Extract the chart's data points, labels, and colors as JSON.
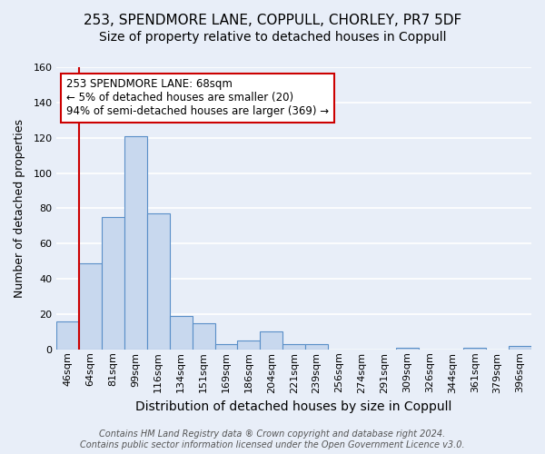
{
  "title_line1": "253, SPENDMORE LANE, COPPULL, CHORLEY, PR7 5DF",
  "title_line2": "Size of property relative to detached houses in Coppull",
  "xlabel": "Distribution of detached houses by size in Coppull",
  "ylabel": "Number of detached properties",
  "bar_labels": [
    "46sqm",
    "64sqm",
    "81sqm",
    "99sqm",
    "116sqm",
    "134sqm",
    "151sqm",
    "169sqm",
    "186sqm",
    "204sqm",
    "221sqm",
    "239sqm",
    "256sqm",
    "274sqm",
    "291sqm",
    "309sqm",
    "326sqm",
    "344sqm",
    "361sqm",
    "379sqm",
    "396sqm"
  ],
  "bar_values": [
    16,
    49,
    75,
    121,
    77,
    19,
    15,
    3,
    5,
    10,
    3,
    3,
    0,
    0,
    0,
    1,
    0,
    0,
    1,
    0,
    2
  ],
  "bar_color": "#c8d8ee",
  "bar_edge_color": "#5a8fc8",
  "background_color": "#e8eef8",
  "grid_color": "#ffffff",
  "annotation_line1": "253 SPENDMORE LANE: 68sqm",
  "annotation_line2": "← 5% of detached houses are smaller (20)",
  "annotation_line3": "94% of semi-detached houses are larger (369) →",
  "annotation_box_edge_color": "#cc0000",
  "annotation_box_face_color": "#ffffff",
  "vline_color": "#cc0000",
  "ylim": [
    0,
    160
  ],
  "yticks": [
    0,
    20,
    40,
    60,
    80,
    100,
    120,
    140,
    160
  ],
  "footer_line1": "Contains HM Land Registry data ® Crown copyright and database right 2024.",
  "footer_line2": "Contains public sector information licensed under the Open Government Licence v3.0.",
  "footer_fontsize": 7,
  "title1_fontsize": 11,
  "title2_fontsize": 10,
  "xlabel_fontsize": 10,
  "ylabel_fontsize": 9,
  "tick_fontsize": 8,
  "annotation_fontsize": 8.5
}
